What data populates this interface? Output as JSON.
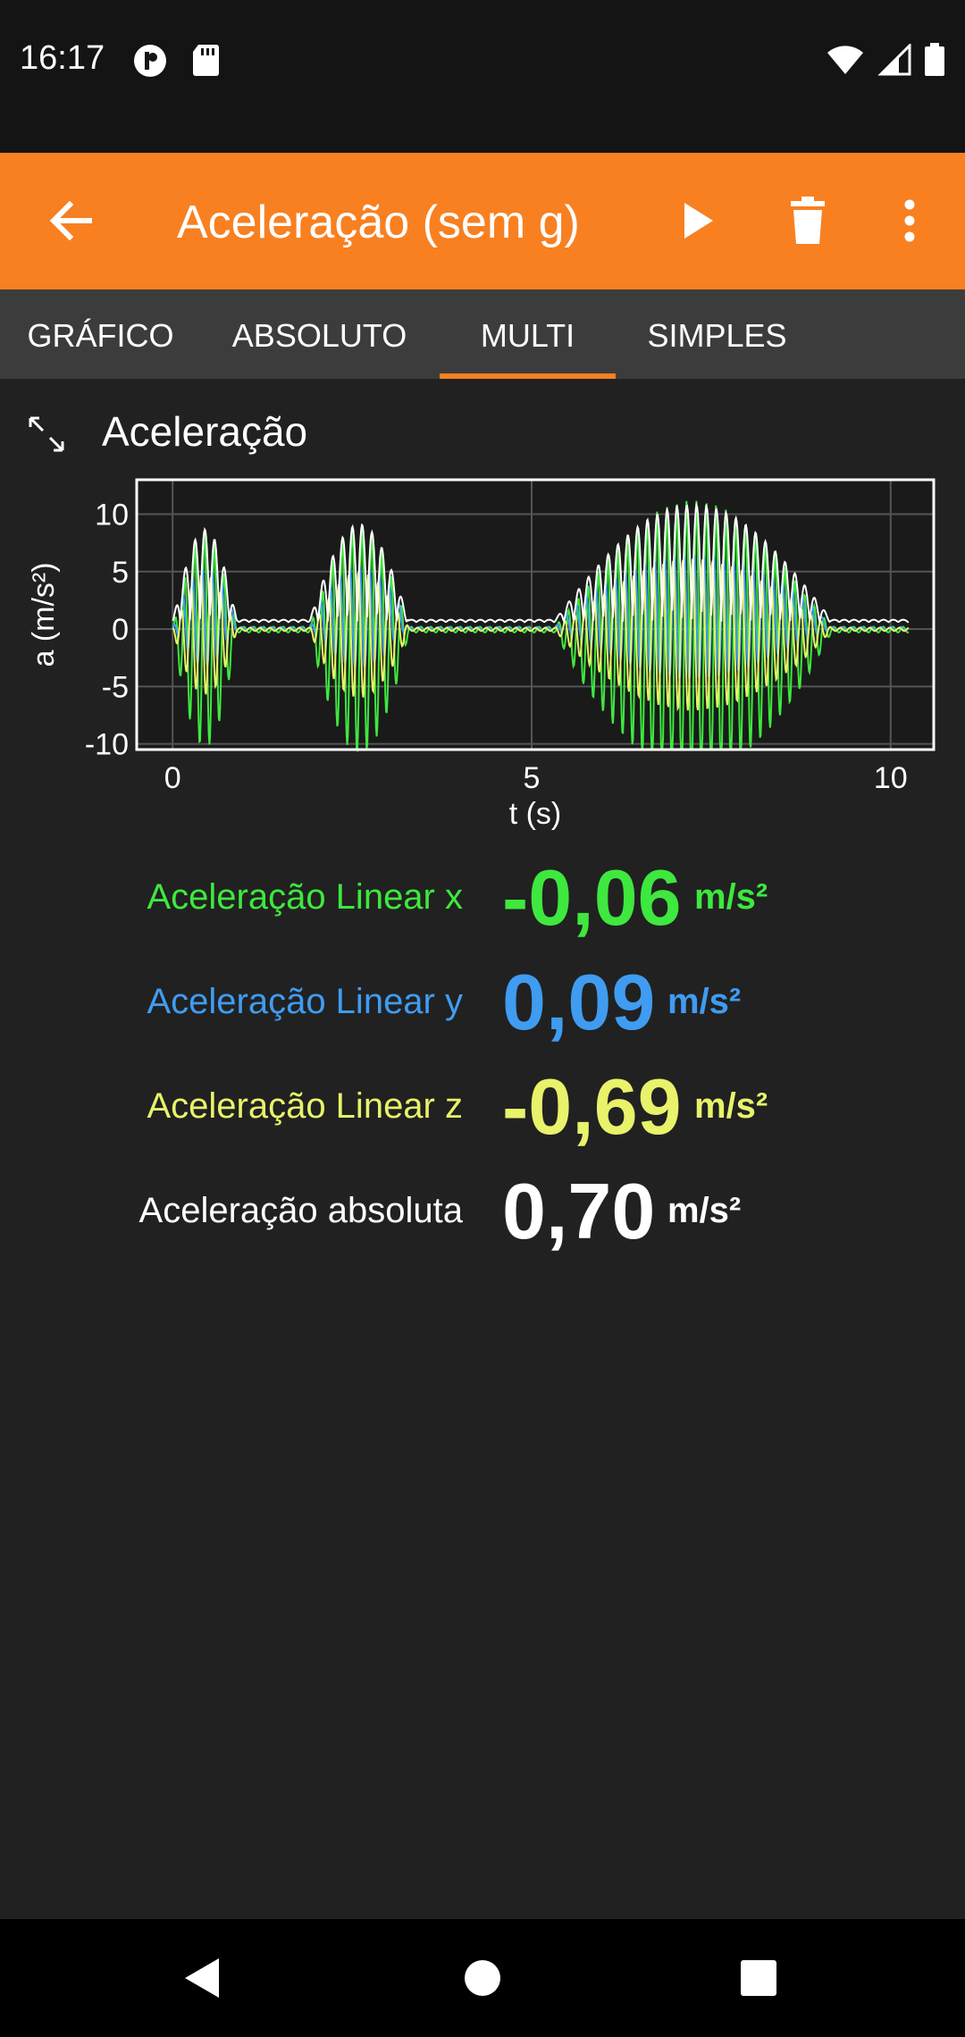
{
  "status": {
    "time": "16:17",
    "icons": [
      "notification-icon",
      "sd-card-icon",
      "wifi-icon",
      "signal-icon",
      "battery-icon"
    ]
  },
  "app_bar": {
    "title": "Aceleração (sem g)",
    "icons": [
      "back-arrow-icon",
      "play-icon",
      "trash-icon",
      "more-vert-icon"
    ],
    "background": "#f88021"
  },
  "tabs": [
    {
      "label": "GRÁFICO",
      "selected": false
    },
    {
      "label": "ABSOLUTO",
      "selected": false
    },
    {
      "label": "MULTI",
      "selected": true
    },
    {
      "label": "SIMPLES",
      "selected": false
    }
  ],
  "graph": {
    "title": "Aceleração"
  },
  "chart_data": {
    "type": "line",
    "xlabel": "t (s)",
    "ylabel": "a (m/s²)",
    "xlim": [
      -0.5,
      10.6
    ],
    "ylim": [
      -10.5,
      13
    ],
    "xticks": [
      "0",
      "5",
      "10"
    ],
    "yticks": [
      "10",
      "5",
      "0",
      "-5",
      "-10"
    ],
    "grid": true,
    "colors": {
      "x": "#3ee83e",
      "y": "#3f9cf1",
      "z": "#e8f26a",
      "abs": "#ffffff"
    },
    "bursts": [
      {
        "t_start": 0.0,
        "t_end": 0.9,
        "amplitude": 9.5
      },
      {
        "t_start": 1.9,
        "t_end": 3.3,
        "amplitude": 10.0
      },
      {
        "t_start": 5.3,
        "t_end": 9.2,
        "amplitude": 12.0
      }
    ]
  },
  "readings": [
    {
      "label": "Aceleração Linear x",
      "value": "-0,06",
      "unit": "m/s²",
      "color": "#3ee83e"
    },
    {
      "label": "Aceleração Linear y",
      "value": "0,09",
      "unit": "m/s²",
      "color": "#3f9cf1"
    },
    {
      "label": "Aceleração Linear z",
      "value": "-0,69",
      "unit": "m/s²",
      "color": "#e8f26a"
    },
    {
      "label": "Aceleração absoluta",
      "value": "0,70",
      "unit": "m/s²",
      "color": "#ffffff"
    }
  ],
  "nav": {
    "icons": [
      "back-triangle-icon",
      "home-circle-icon",
      "recents-square-icon"
    ]
  }
}
